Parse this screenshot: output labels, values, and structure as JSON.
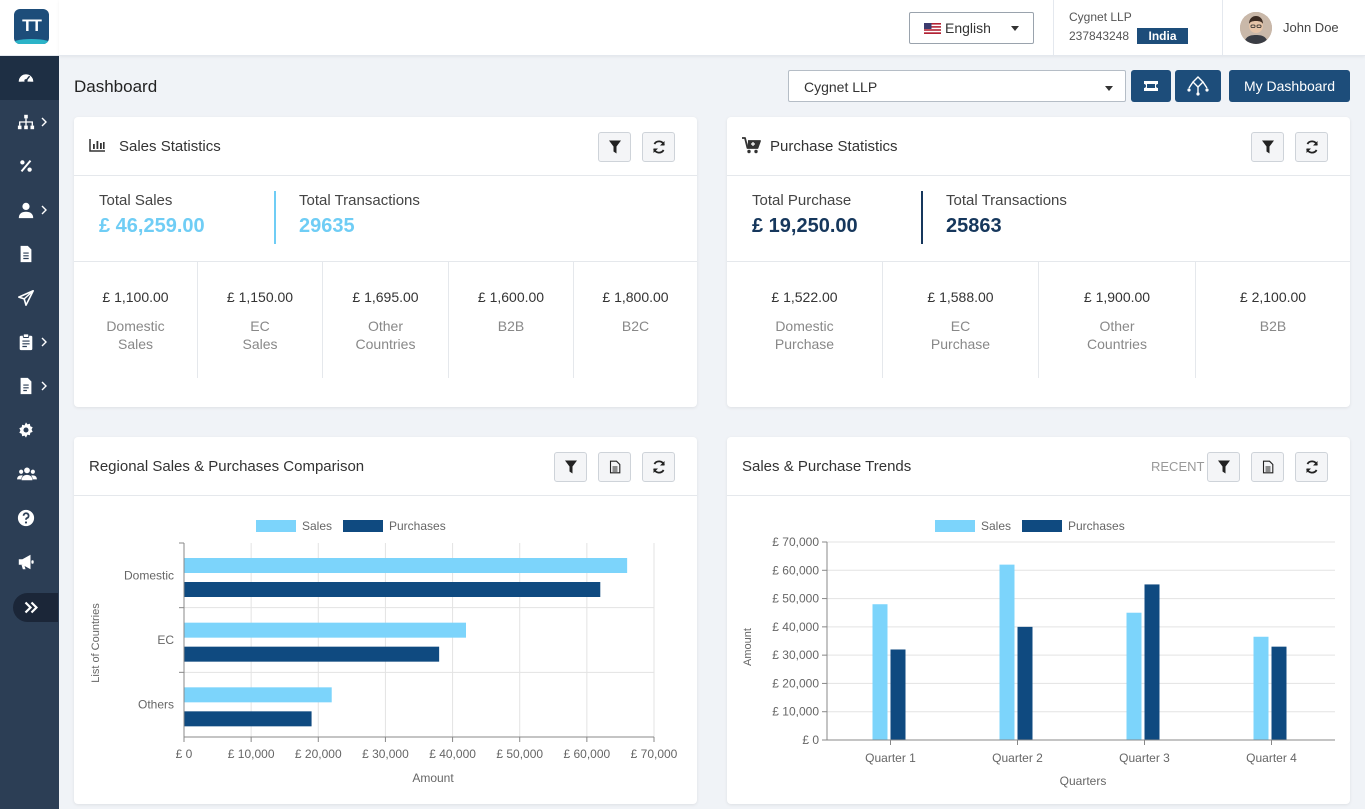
{
  "app": {
    "logo_text": "TT"
  },
  "topbar": {
    "language": "English",
    "company_name": "Cygnet LLP",
    "company_id": "237843248",
    "country": "India",
    "user_name": "John Doe"
  },
  "sidebar": {
    "items": [
      {
        "icon": "dashboard-icon"
      },
      {
        "icon": "org-chart-icon"
      },
      {
        "icon": "percent-icon"
      },
      {
        "icon": "user-icon"
      },
      {
        "icon": "document-icon"
      },
      {
        "icon": "send-icon"
      },
      {
        "icon": "clipboard-icon"
      },
      {
        "icon": "report-icon"
      },
      {
        "icon": "settings-icon"
      },
      {
        "icon": "users-icon"
      },
      {
        "icon": "help-icon"
      },
      {
        "icon": "megaphone-icon"
      }
    ],
    "expand_icon": "double-chevron-right-icon"
  },
  "header": {
    "title": "Dashboard",
    "company_select": "Cygnet LLP",
    "my_dashboard": "My Dashboard"
  },
  "sales_stats": {
    "title": "Sales Statistics",
    "total_label": "Total Sales",
    "total_value": "£ 46,259.00",
    "tx_label": "Total Transactions",
    "tx_value": "29635",
    "cells": [
      {
        "amount": "£ 1,100.00",
        "line1": "Domestic",
        "line2": "Sales"
      },
      {
        "amount": "£ 1,150.00",
        "line1": "EC",
        "line2": "Sales"
      },
      {
        "amount": "£ 1,695.00",
        "line1": "Other",
        "line2": "Countries"
      },
      {
        "amount": "£ 1,600.00",
        "line1": "B2B",
        "line2": ""
      },
      {
        "amount": "£ 1,800.00",
        "line1": "B2C",
        "line2": ""
      }
    ]
  },
  "purchase_stats": {
    "title": "Purchase Statistics",
    "total_label": "Total Purchase",
    "total_value": "£ 19,250.00",
    "tx_label": "Total Transactions",
    "tx_value": "25863",
    "cells": [
      {
        "amount": "£ 1,522.00",
        "line1": "Domestic",
        "line2": "Purchase"
      },
      {
        "amount": "£ 1,588.00",
        "line1": "EC",
        "line2": "Purchase"
      },
      {
        "amount": "£ 1,900.00",
        "line1": "Other",
        "line2": "Countries"
      },
      {
        "amount": "£ 2,100.00",
        "line1": "B2B",
        "line2": ""
      }
    ]
  },
  "regional": {
    "title": "Regional Sales & Purchases Comparison"
  },
  "trends": {
    "title": "Sales & Purchase Trends",
    "recent_label": "RECENT"
  },
  "colors": {
    "primary": "#1d4d7a",
    "sales": "#7cd4fb",
    "purchases": "#0f4a80",
    "light_value": "#6fcdf5"
  },
  "chart_data": [
    {
      "type": "bar",
      "orientation": "horizontal",
      "categories": [
        "Domestic",
        "EC",
        "Others"
      ],
      "series": [
        {
          "name": "Sales",
          "values": [
            66000,
            42000,
            22000
          ]
        },
        {
          "name": "Purchases",
          "values": [
            62000,
            38000,
            19000
          ]
        }
      ],
      "xlabel": "Amount",
      "ylabel": "List of Countries",
      "xlim": [
        0,
        70000
      ],
      "ticks": [
        "£ 0",
        "£ 10,000",
        "£ 20,000",
        "£ 30,000",
        "£ 40,000",
        "£ 50,000",
        "£ 60,000",
        "£ 70,000"
      ],
      "legend": "top"
    },
    {
      "type": "bar",
      "categories": [
        "Quarter 1",
        "Quarter 2",
        "Quarter 3",
        "Quarter 4"
      ],
      "series": [
        {
          "name": "Sales",
          "values": [
            48000,
            62000,
            45000,
            36500
          ]
        },
        {
          "name": "Purchases",
          "values": [
            32000,
            40000,
            55000,
            33000
          ]
        }
      ],
      "xlabel": "Quarters",
      "ylabel": "Amount",
      "ylim": [
        0,
        70000
      ],
      "ticks": [
        "£ 0",
        "£ 10,000",
        "£ 20,000",
        "£ 30,000",
        "£ 40,000",
        "£ 50,000",
        "£ 60,000",
        "£ 70,000"
      ],
      "legend": "top"
    }
  ]
}
